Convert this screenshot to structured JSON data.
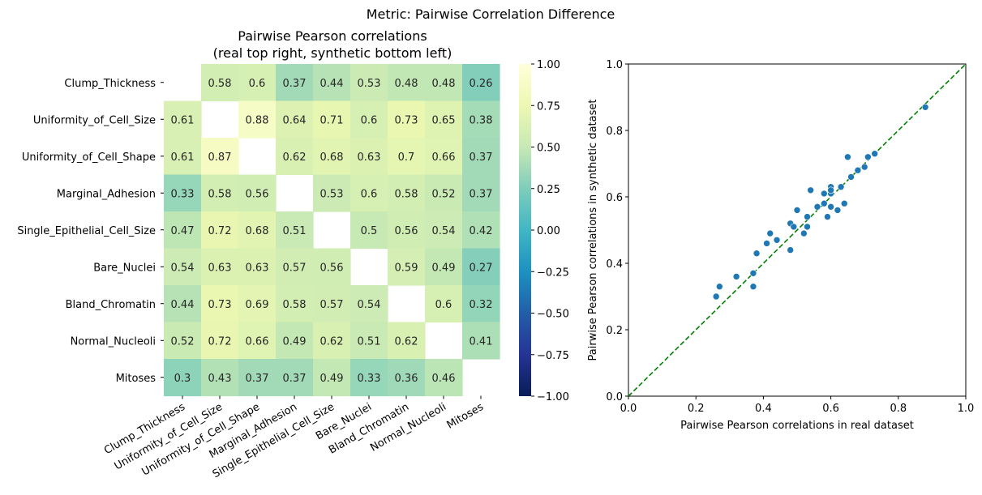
{
  "suptitle": "Metric: Pairwise Correlation Difference",
  "chart_data": [
    {
      "type": "heatmap",
      "title_line1": "Pairwise Pearson correlations",
      "title_line2": "(real top right, synthetic bottom left)",
      "labels": [
        "Clump_Thickness",
        "Uniformity_of_Cell_Size",
        "Uniformity_of_Cell_Shape",
        "Marginal_Adhesion",
        "Single_Epithelial_Cell_Size",
        "Bare_Nuclei",
        "Bland_Chromatin",
        "Normal_Nucleoli",
        "Mitoses"
      ],
      "matrix": [
        [
          null,
          0.58,
          0.6,
          0.37,
          0.44,
          0.53,
          0.48,
          0.48,
          0.26
        ],
        [
          0.61,
          null,
          0.88,
          0.64,
          0.71,
          0.6,
          0.73,
          0.65,
          0.38
        ],
        [
          0.61,
          0.87,
          null,
          0.62,
          0.68,
          0.63,
          0.7,
          0.66,
          0.37
        ],
        [
          0.33,
          0.58,
          0.56,
          null,
          0.53,
          0.6,
          0.58,
          0.52,
          0.37
        ],
        [
          0.47,
          0.72,
          0.68,
          0.51,
          null,
          0.5,
          0.56,
          0.54,
          0.42
        ],
        [
          0.54,
          0.63,
          0.63,
          0.57,
          0.56,
          null,
          0.59,
          0.49,
          0.27
        ],
        [
          0.44,
          0.73,
          0.69,
          0.58,
          0.57,
          0.54,
          null,
          0.6,
          0.32
        ],
        [
          0.52,
          0.72,
          0.66,
          0.49,
          0.62,
          0.51,
          0.62,
          null,
          0.41
        ],
        [
          0.3,
          0.43,
          0.37,
          0.37,
          0.49,
          0.33,
          0.36,
          0.46,
          null
        ]
      ],
      "colormap": "YlGnBu_r",
      "vmin": -1,
      "vmax": 1,
      "colorbar_ticks": [
        "1.00",
        "0.75",
        "0.50",
        "0.25",
        "0.00",
        "−0.25",
        "−0.50",
        "−0.75",
        "−1.00"
      ]
    },
    {
      "type": "scatter",
      "xlabel": "Pairwise Pearson correlations in real dataset",
      "ylabel": "Pairwise Pearson correlations in synthetic dataset",
      "xlim": [
        0,
        1
      ],
      "ylim": [
        0,
        1
      ],
      "xticks": [
        "0.0",
        "0.2",
        "0.4",
        "0.6",
        "0.8",
        "1.0"
      ],
      "yticks": [
        "0.0",
        "0.2",
        "0.4",
        "0.6",
        "0.8",
        "1.0"
      ],
      "point_color": "#1f77b4",
      "reference_line_color": "#008000",
      "points": [
        {
          "x": 0.58,
          "y": 0.61
        },
        {
          "x": 0.6,
          "y": 0.61
        },
        {
          "x": 0.37,
          "y": 0.33
        },
        {
          "x": 0.44,
          "y": 0.47
        },
        {
          "x": 0.53,
          "y": 0.54
        },
        {
          "x": 0.48,
          "y": 0.44
        },
        {
          "x": 0.48,
          "y": 0.52
        },
        {
          "x": 0.26,
          "y": 0.3
        },
        {
          "x": 0.88,
          "y": 0.87
        },
        {
          "x": 0.64,
          "y": 0.58
        },
        {
          "x": 0.71,
          "y": 0.72
        },
        {
          "x": 0.6,
          "y": 0.63
        },
        {
          "x": 0.73,
          "y": 0.73
        },
        {
          "x": 0.65,
          "y": 0.72
        },
        {
          "x": 0.38,
          "y": 0.43
        },
        {
          "x": 0.62,
          "y": 0.56
        },
        {
          "x": 0.68,
          "y": 0.68
        },
        {
          "x": 0.63,
          "y": 0.63
        },
        {
          "x": 0.7,
          "y": 0.69
        },
        {
          "x": 0.66,
          "y": 0.66
        },
        {
          "x": 0.37,
          "y": 0.37
        },
        {
          "x": 0.53,
          "y": 0.51
        },
        {
          "x": 0.6,
          "y": 0.57
        },
        {
          "x": 0.58,
          "y": 0.58
        },
        {
          "x": 0.52,
          "y": 0.49
        },
        {
          "x": 0.37,
          "y": 0.37
        },
        {
          "x": 0.5,
          "y": 0.56
        },
        {
          "x": 0.56,
          "y": 0.57
        },
        {
          "x": 0.54,
          "y": 0.62
        },
        {
          "x": 0.42,
          "y": 0.49
        },
        {
          "x": 0.59,
          "y": 0.54
        },
        {
          "x": 0.49,
          "y": 0.51
        },
        {
          "x": 0.27,
          "y": 0.33
        },
        {
          "x": 0.6,
          "y": 0.62
        },
        {
          "x": 0.32,
          "y": 0.36
        },
        {
          "x": 0.41,
          "y": 0.46
        }
      ]
    }
  ]
}
